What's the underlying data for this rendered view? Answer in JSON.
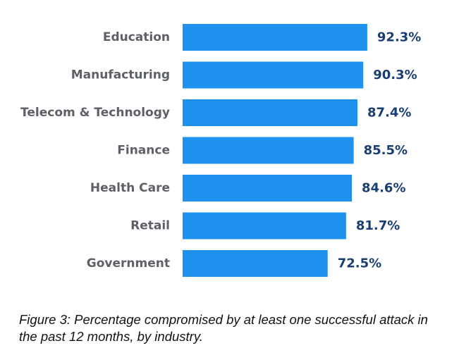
{
  "chart_data": {
    "type": "bar",
    "orientation": "horizontal",
    "categories": [
      "Education",
      "Manufacturing",
      "Telecom & Technology",
      "Finance",
      "Health Care",
      "Retail",
      "Government"
    ],
    "values": [
      92.3,
      90.3,
      87.4,
      85.5,
      84.6,
      81.7,
      72.5
    ],
    "value_labels": [
      "92.3%",
      "90.3%",
      "87.4%",
      "85.5%",
      "84.6%",
      "81.7%",
      "72.5%"
    ],
    "unit": "%",
    "grid": false,
    "bar_color": "#1e90ee",
    "label_color": "#5d6066",
    "value_color": "#1a3e72"
  },
  "caption": "Figure 3: Percentage compromised by at least one successful attack in the past 12 months, by industry."
}
